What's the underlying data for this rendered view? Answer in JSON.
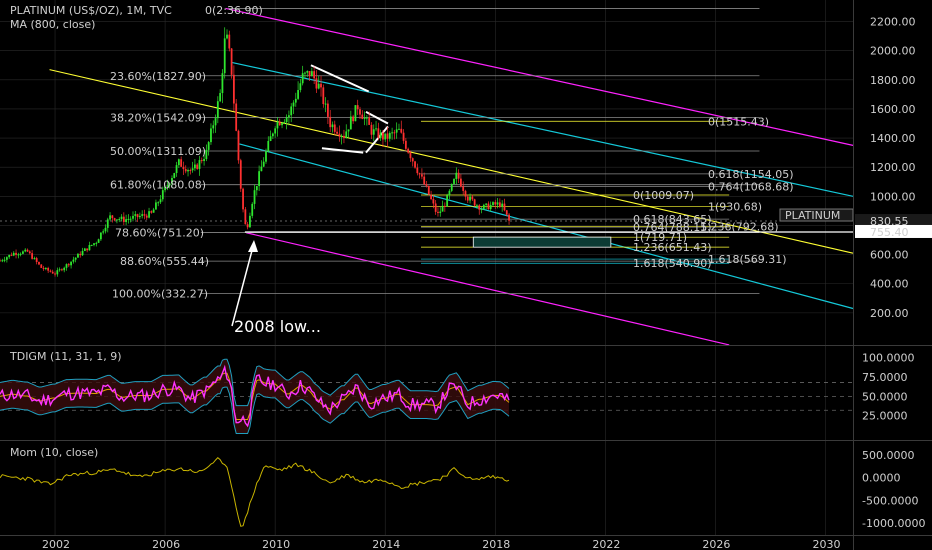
{
  "header": {
    "symbol_line": "PLATINUM (US$/OZ), 1M, TVC",
    "ma_line": "MA (800, close)",
    "top_fragment": "0(2:36.90)"
  },
  "annotation": "2008 low...",
  "colors": {
    "background": "#000000",
    "candle_up": "#2ee62e",
    "candle_down": "#ff3030",
    "fib_channel_yellow": "#ffff33",
    "channel_cyan": "#14c8d8",
    "channel_magenta": "#ff22ff",
    "grid": "#2a2a2a",
    "tdi_price_line": "#ff33ff",
    "tdi_signal": "#20d020",
    "tdi_band": "#1f9fbf",
    "mom_line": "#c8b400"
  },
  "price_axis": {
    "ticks": [
      "2200.00",
      "2000.00",
      "1800.00",
      "1600.00",
      "1400.00",
      "1200.00",
      "1000.00",
      "800.00",
      "600.00",
      "400.00",
      "200.00"
    ],
    "labels": [
      {
        "text": "PLATINUM",
        "kind": "symbol"
      },
      {
        "text": "830.55",
        "kind": "last"
      },
      {
        "text": "755.40",
        "kind": "ma"
      }
    ]
  },
  "x_axis": {
    "ticks": [
      "2002",
      "2006",
      "2010",
      "2014",
      "2018",
      "2022",
      "2026",
      "2030"
    ]
  },
  "fib_retracement_labels": [
    {
      "text": "23.60%(1827.90)",
      "value": 1827.9
    },
    {
      "text": "38.20%(1542.09)",
      "value": 1542.09
    },
    {
      "text": "50.00%(1311.09)",
      "value": 1311.09
    },
    {
      "text": "61.80%(1080.08)",
      "value": 1080.08
    },
    {
      "text": "78.60%(751.20)",
      "value": 751.2
    },
    {
      "text": "88.60%(555.44)",
      "value": 555.44
    },
    {
      "text": "100.00%(332.27)",
      "value": 332.27
    }
  ],
  "fib_extension_labels": [
    {
      "text": "0(1515.43)",
      "color": "#ffff33",
      "value": 1515.43
    },
    {
      "text": "0.618(1154.05)",
      "color": "#cfcfcf",
      "value": 1154.05
    },
    {
      "text": "0.764(1068.68)",
      "color": "#cfcfcf",
      "value": 1068.68
    },
    {
      "text": "0(1009.07)",
      "color": "#ffff33",
      "value": 1009.07
    },
    {
      "text": "1(930.68)",
      "color": "#ffff33",
      "value": 930.68
    },
    {
      "text": "0.618(843.65)",
      "color": "#cfcfcf",
      "value": 843.65
    },
    {
      "text": "0.764(788.15)",
      "color": "#cfcfcf",
      "value": 788.15
    },
    {
      "text": "1.236(792.68)",
      "color": "#ffff33",
      "value": 792.68
    },
    {
      "text": "1(719.71)",
      "color": "#ffff33",
      "value": 719.71
    },
    {
      "text": "1.236(651.43)",
      "color": "#ffff33",
      "value": 651.43
    },
    {
      "text": "1.618(569.31)",
      "color": "#14c8d8",
      "value": 569.31
    },
    {
      "text": "1.618(540.90)",
      "color": "#14c8d8",
      "value": 540.9
    }
  ],
  "tdi": {
    "title": "TDIGM (11, 31, 1, 9)",
    "ticks": [
      "100.0000",
      "75.0000",
      "50.0000",
      "25.0000"
    ]
  },
  "mom": {
    "title": "Mom (10, close)",
    "ticks": [
      "500.0000",
      "0.0000",
      "-500.0000",
      "-1000.0000"
    ]
  },
  "chart_data": {
    "type": "candlestick",
    "price_ylim": [
      0,
      2350
    ],
    "x_range": [
      "2000",
      "2031"
    ],
    "price_close_path": [
      [
        2000.0,
        560
      ],
      [
        2000.5,
        610
      ],
      [
        2001.0,
        620
      ],
      [
        2001.5,
        510
      ],
      [
        2002.0,
        470
      ],
      [
        2002.5,
        540
      ],
      [
        2003.0,
        620
      ],
      [
        2003.5,
        690
      ],
      [
        2004.0,
        860
      ],
      [
        2004.5,
        840
      ],
      [
        2005.0,
        860
      ],
      [
        2005.5,
        880
      ],
      [
        2006.0,
        1050
      ],
      [
        2006.5,
        1230
      ],
      [
        2007.0,
        1170
      ],
      [
        2007.5,
        1300
      ],
      [
        2008.0,
        1700
      ],
      [
        2008.2,
        2130
      ],
      [
        2008.4,
        1900
      ],
      [
        2008.6,
        1400
      ],
      [
        2008.8,
        950
      ],
      [
        2008.95,
        760
      ],
      [
        2009.2,
        1000
      ],
      [
        2009.5,
        1200
      ],
      [
        2010.0,
        1500
      ],
      [
        2010.5,
        1560
      ],
      [
        2011.0,
        1820
      ],
      [
        2011.3,
        1850
      ],
      [
        2011.6,
        1750
      ],
      [
        2012.0,
        1500
      ],
      [
        2012.5,
        1420
      ],
      [
        2013.0,
        1620
      ],
      [
        2013.5,
        1450
      ],
      [
        2014.0,
        1400
      ],
      [
        2014.5,
        1450
      ],
      [
        2015.0,
        1250
      ],
      [
        2015.5,
        1050
      ],
      [
        2015.9,
        870
      ],
      [
        2016.2,
        960
      ],
      [
        2016.6,
        1150
      ],
      [
        2017.0,
        990
      ],
      [
        2017.5,
        920
      ],
      [
        2017.9,
        940
      ],
      [
        2018.2,
        950
      ],
      [
        2018.5,
        830
      ]
    ],
    "ma800_value": 755.4,
    "last_close": 830.55,
    "tdi_ylim": [
      0,
      110
    ],
    "tdi_levels": [
      32,
      50,
      68
    ],
    "mom_ylim": [
      -1200,
      700
    ],
    "mom_series": [
      [
        2000.0,
        30
      ],
      [
        2001.0,
        -20
      ],
      [
        2001.8,
        -150
      ],
      [
        2002.5,
        60
      ],
      [
        2003.5,
        120
      ],
      [
        2004.2,
        180
      ],
      [
        2005.0,
        10
      ],
      [
        2006.0,
        150
      ],
      [
        2006.5,
        200
      ],
      [
        2007.3,
        120
      ],
      [
        2007.9,
        420
      ],
      [
        2008.3,
        160
      ],
      [
        2008.6,
        -700
      ],
      [
        2008.8,
        -1150
      ],
      [
        2009.2,
        -350
      ],
      [
        2009.6,
        260
      ],
      [
        2010.2,
        170
      ],
      [
        2010.8,
        290
      ],
      [
        2011.3,
        140
      ],
      [
        2012.0,
        -120
      ],
      [
        2012.6,
        70
      ],
      [
        2013.2,
        -100
      ],
      [
        2013.9,
        -30
      ],
      [
        2014.6,
        -200
      ],
      [
        2015.3,
        -110
      ],
      [
        2016.0,
        -20
      ],
      [
        2016.5,
        180
      ],
      [
        2017.2,
        -60
      ],
      [
        2017.8,
        30
      ],
      [
        2018.5,
        -40
      ]
    ]
  }
}
